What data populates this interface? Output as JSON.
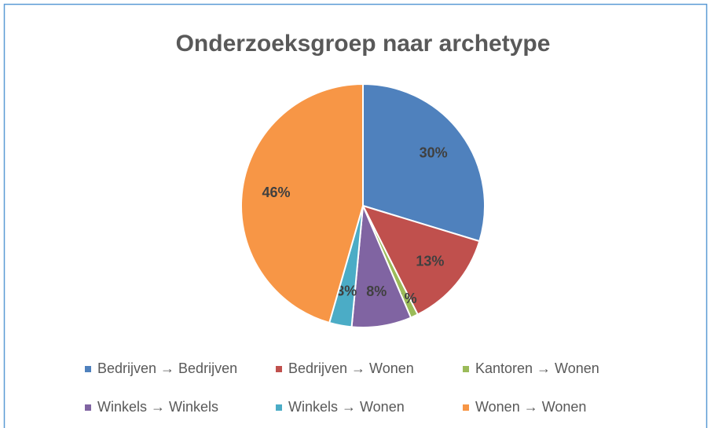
{
  "chart_data": {
    "type": "pie",
    "title": "Onderzoeksgroep naar archetype",
    "categories": [
      "Bedrijven → Bedrijven",
      "Bedrijven → Wonen",
      "Kantoren → Wonen",
      "Winkels → Winkels",
      "Winkels → Wonen",
      "Wonen → Wonen"
    ],
    "values": [
      30,
      13,
      1,
      8,
      3,
      46
    ],
    "value_labels": [
      "30%",
      "13%",
      "1%",
      "8%",
      "3%",
      "46%"
    ],
    "colors": [
      "#4f81bd",
      "#c0504d",
      "#9bbb59",
      "#8064a2",
      "#4bacc6",
      "#f79646"
    ],
    "legend": "bottom"
  }
}
